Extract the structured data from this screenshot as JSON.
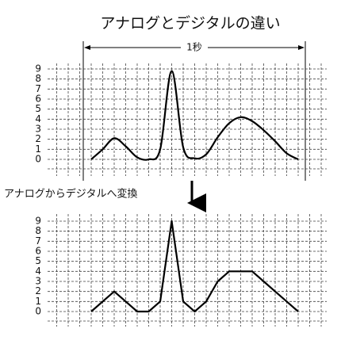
{
  "chart_data": [
    {
      "type": "line",
      "title": "アナログとデジタルの違い",
      "annotation": "1秒",
      "smooth": true,
      "color": "#000000",
      "grid": true,
      "categories": [
        null,
        null,
        null,
        null,
        null,
        null,
        null,
        null,
        null,
        null,
        null,
        null,
        null,
        null,
        null,
        null,
        null,
        null,
        null
      ],
      "values": [
        0,
        1,
        2.1,
        1.3,
        0.2,
        0,
        1,
        8.8,
        1.2,
        0.1,
        0.5,
        2.2,
        3.6,
        4.2,
        3.8,
        2.9,
        1.8,
        0.6,
        0
      ],
      "ylim": [
        0,
        9
      ],
      "yticks": [
        0,
        1,
        2,
        3,
        4,
        5,
        6,
        7,
        8,
        9
      ]
    },
    {
      "type": "line",
      "annotation": "アナログからデジタルへ変換",
      "smooth": false,
      "color": "#000000",
      "grid": true,
      "categories": [
        null,
        null,
        null,
        null,
        null,
        null,
        null,
        null,
        null,
        null,
        null,
        null,
        null,
        null,
        null,
        null,
        null,
        null,
        null
      ],
      "values": [
        0,
        1,
        2,
        1,
        0,
        0,
        1,
        9,
        1,
        0,
        1,
        3,
        4,
        4,
        4,
        3,
        2,
        1,
        0
      ],
      "ylim": [
        0,
        9
      ],
      "yticks": [
        0,
        1,
        2,
        3,
        4,
        5,
        6,
        7,
        8,
        9
      ]
    }
  ]
}
